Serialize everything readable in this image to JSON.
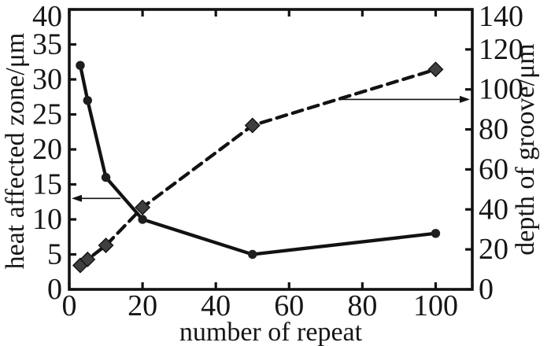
{
  "chart_data": {
    "type": "line",
    "title": "",
    "xlabel": "number of repeat",
    "xlim": [
      0,
      110
    ],
    "x_ticks": [
      0,
      20,
      40,
      60,
      80,
      100
    ],
    "grid": false,
    "legend": "none",
    "left_axis": {
      "label": "heat affected zone/μm",
      "lim": [
        0,
        40
      ],
      "ticks": [
        0,
        5,
        10,
        15,
        20,
        25,
        30,
        35,
        40
      ]
    },
    "right_axis": {
      "label": "depth of groove/μm",
      "lim": [
        0,
        140
      ],
      "ticks": [
        0,
        20,
        40,
        60,
        80,
        100,
        120,
        140
      ]
    },
    "series": [
      {
        "name": "heat affected zone",
        "axis": "left",
        "style": "solid",
        "marker": "circle",
        "x": [
          3,
          5,
          10,
          20,
          50,
          100
        ],
        "y": [
          32,
          27,
          16,
          10,
          5,
          8
        ]
      },
      {
        "name": "depth of groove",
        "axis": "right",
        "style": "dashed",
        "marker": "diamond",
        "x": [
          3,
          5,
          10,
          20,
          50,
          100
        ],
        "y": [
          12,
          15,
          22,
          41,
          82,
          110
        ]
      }
    ],
    "annotations": [
      {
        "type": "arrow",
        "direction": "left",
        "axis": "left",
        "value": 13,
        "from_x": 14
      },
      {
        "type": "arrow",
        "direction": "right",
        "axis": "right",
        "value": 95,
        "from_x": 74
      }
    ],
    "colors": {
      "stroke": "#121212",
      "circle_fill": "#1e1e1e",
      "diamond_fill": "#3f3f3f",
      "text": "#161616",
      "background": "#ffffff"
    }
  }
}
